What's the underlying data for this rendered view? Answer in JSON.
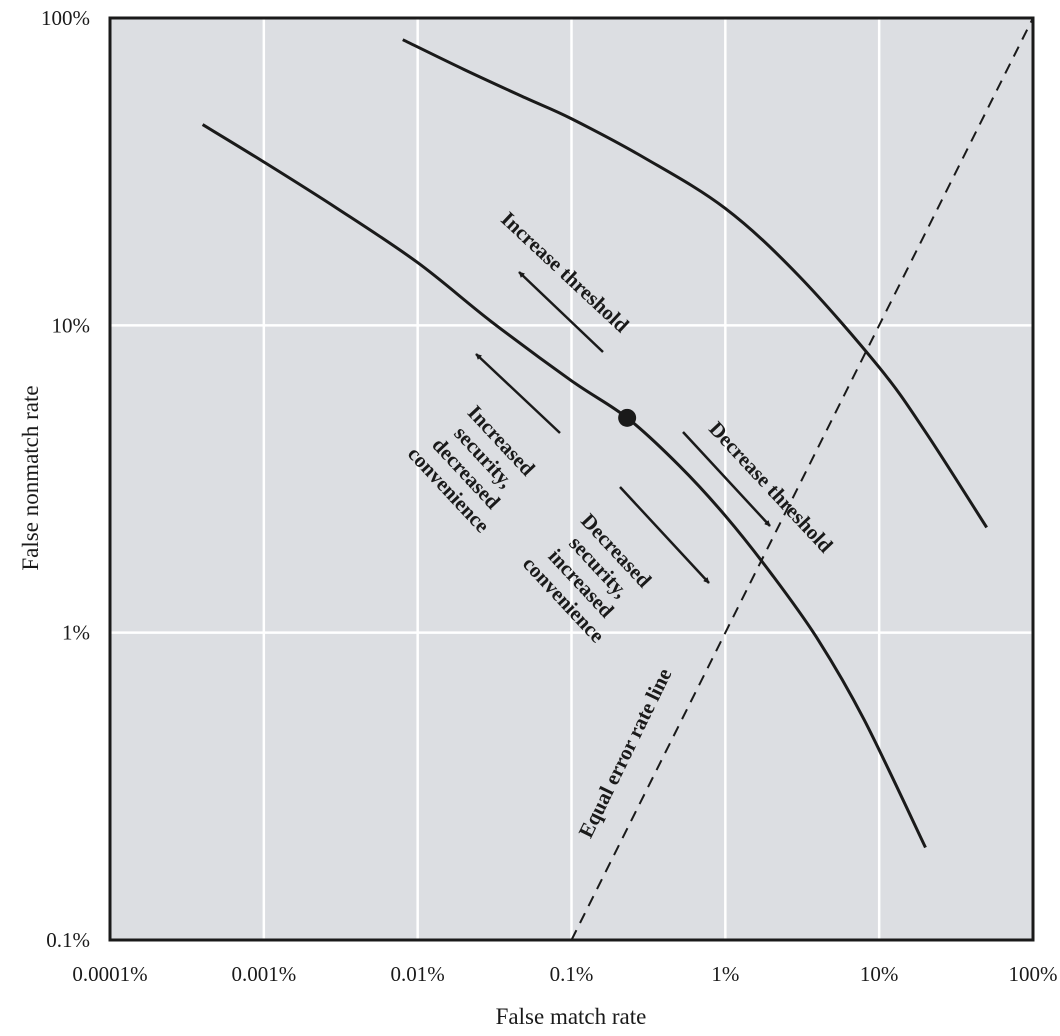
{
  "chart_data": {
    "type": "line",
    "title": "",
    "xlabel": "False match rate",
    "ylabel": "False nonmatch rate",
    "xscale": "log",
    "yscale": "log",
    "xlim": [
      0.0001,
      100
    ],
    "ylim": [
      0.1,
      100
    ],
    "x_ticks": [
      0.0001,
      0.001,
      0.01,
      0.1,
      1,
      10,
      100
    ],
    "x_tick_labels": [
      "0.0001%",
      "0.001%",
      "0.01%",
      "0.1%",
      "1%",
      "10%",
      "100%"
    ],
    "y_ticks": [
      0.1,
      1,
      10,
      100
    ],
    "y_tick_labels": [
      "0.1%",
      "1%",
      "10%",
      "100%"
    ],
    "grid": true,
    "colors": {
      "plot_bg": "#dcdee2",
      "grid": "#ffffff",
      "line": "#1a1a1a"
    },
    "series": [
      {
        "x": [
          0.0004,
          0.001,
          0.003,
          0.01,
          0.03,
          0.1,
          0.23,
          0.5,
          1,
          2,
          4,
          8,
          20
        ],
        "y": [
          45,
          34,
          24,
          16,
          10.3,
          6.6,
          5.0,
          3.5,
          2.4,
          1.55,
          0.95,
          0.52,
          0.2
        ]
      },
      {
        "x": [
          0.008,
          0.02,
          0.05,
          0.1,
          0.3,
          1,
          3,
          10,
          20,
          50
        ],
        "y": [
          85,
          68,
          55,
          47,
          35,
          24,
          14.5,
          7.3,
          4.5,
          2.2
        ]
      },
      {
        "name": "Equal error rate line",
        "style": "dashed",
        "x": [
          0.1,
          100
        ],
        "y": [
          0.1,
          100
        ]
      }
    ],
    "points": [
      {
        "x": 0.23,
        "y": 5.0
      }
    ],
    "annotations": [
      {
        "lines": [
          "Increase threshold"
        ],
        "direction": "up-left"
      },
      {
        "lines": [
          "Increased",
          "security,",
          "decreased",
          "convenience"
        ],
        "direction": "up-left"
      },
      {
        "lines": [
          "Decreased",
          "security,",
          "increased",
          "convenience"
        ],
        "direction": "down-right"
      },
      {
        "lines": [
          "Decrease threshold"
        ],
        "direction": "down-right"
      },
      {
        "lines": [
          "Equal error rate line"
        ]
      }
    ]
  }
}
